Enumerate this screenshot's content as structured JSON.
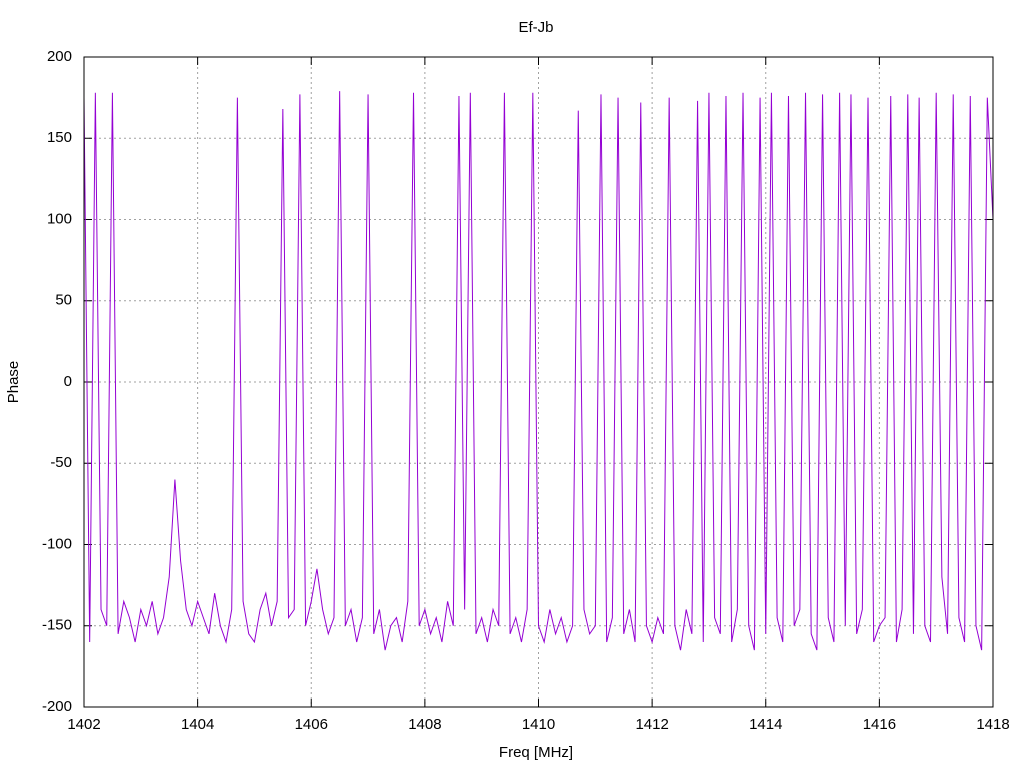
{
  "chart_data": {
    "type": "line",
    "title": "Ef-Jb",
    "x_label": "Freq [MHz]",
    "y_label": "Phase",
    "xlim": [
      1402,
      1418
    ],
    "xticks": [
      1402,
      1404,
      1406,
      1408,
      1410,
      1412,
      1414,
      1416,
      1418
    ],
    "ylim": [
      -200,
      200
    ],
    "yticks": [
      -200,
      -150,
      -100,
      -50,
      0,
      50,
      100,
      150,
      200
    ],
    "grid": true,
    "series": [
      {
        "color": "#9400d3",
        "x": [
          1402.0,
          1402.1,
          1402.2,
          1402.3,
          1402.4,
          1402.5,
          1402.6,
          1402.7,
          1402.8,
          1402.9,
          1403.0,
          1403.1,
          1403.2,
          1403.3,
          1403.4,
          1403.5,
          1403.6,
          1403.7,
          1403.8,
          1403.9,
          1404.0,
          1404.1,
          1404.2,
          1404.3,
          1404.4,
          1404.5,
          1404.6,
          1404.7,
          1404.8,
          1404.9,
          1405.0,
          1405.1,
          1405.2,
          1405.3,
          1405.4,
          1405.5,
          1405.6,
          1405.7,
          1405.8,
          1405.9,
          1406.0,
          1406.1,
          1406.2,
          1406.3,
          1406.4,
          1406.5,
          1406.6,
          1406.7,
          1406.8,
          1406.9,
          1407.0,
          1407.1,
          1407.2,
          1407.3,
          1407.4,
          1407.5,
          1407.6,
          1407.7,
          1407.8,
          1407.9,
          1408.0,
          1408.1,
          1408.2,
          1408.3,
          1408.4,
          1408.5,
          1408.6,
          1408.7,
          1408.8,
          1408.9,
          1409.0,
          1409.1,
          1409.2,
          1409.3,
          1409.4,
          1409.5,
          1409.6,
          1409.7,
          1409.8,
          1409.9,
          1410.0,
          1410.1,
          1410.2,
          1410.3,
          1410.4,
          1410.5,
          1410.6,
          1410.7,
          1410.8,
          1410.9,
          1411.0,
          1411.1,
          1411.2,
          1411.3,
          1411.4,
          1411.5,
          1411.6,
          1411.7,
          1411.8,
          1411.9,
          1412.0,
          1412.1,
          1412.2,
          1412.3,
          1412.4,
          1412.5,
          1412.6,
          1412.7,
          1412.8,
          1412.9,
          1413.0,
          1413.1,
          1413.2,
          1413.3,
          1413.4,
          1413.5,
          1413.6,
          1413.7,
          1413.8,
          1413.9,
          1414.0,
          1414.1,
          1414.2,
          1414.3,
          1414.4,
          1414.5,
          1414.6,
          1414.7,
          1414.8,
          1414.9,
          1415.0,
          1415.1,
          1415.2,
          1415.3,
          1415.4,
          1415.5,
          1415.6,
          1415.7,
          1415.8,
          1415.9,
          1416.0,
          1416.1,
          1416.2,
          1416.3,
          1416.4,
          1416.5,
          1416.6,
          1416.7,
          1416.8,
          1416.9,
          1417.0,
          1417.1,
          1417.2,
          1417.3,
          1417.4,
          1417.5,
          1417.6,
          1417.7,
          1417.8,
          1417.9,
          1418.0
        ],
        "values": [
          175,
          -160,
          178,
          -140,
          -150,
          178,
          -155,
          -135,
          -145,
          -160,
          -140,
          -150,
          -135,
          -155,
          -145,
          -120,
          -60,
          -110,
          -140,
          -150,
          -135,
          -145,
          -155,
          -130,
          -150,
          -160,
          -140,
          175,
          -135,
          -155,
          -160,
          -140,
          -130,
          -150,
          -135,
          168,
          -145,
          -140,
          177,
          -150,
          -135,
          -115,
          -140,
          -155,
          -145,
          179,
          -150,
          -140,
          -160,
          -145,
          177,
          -155,
          -140,
          -165,
          -150,
          -145,
          -160,
          -135,
          178,
          -150,
          -140,
          -155,
          -145,
          -160,
          -135,
          -150,
          176,
          -140,
          178,
          -155,
          -145,
          -160,
          -140,
          -150,
          178,
          -155,
          -145,
          -160,
          -140,
          178,
          -150,
          -160,
          -140,
          -155,
          -145,
          -160,
          -150,
          167,
          -140,
          -155,
          -150,
          177,
          -160,
          -145,
          175,
          -155,
          -140,
          -160,
          172,
          -150,
          -160,
          -145,
          -155,
          175,
          -150,
          -165,
          -140,
          -155,
          173,
          -160,
          178,
          -145,
          -155,
          176,
          -160,
          -140,
          178,
          -150,
          -165,
          175,
          -155,
          178,
          -145,
          -160,
          176,
          -150,
          -140,
          178,
          -155,
          -165,
          177,
          -145,
          -160,
          178,
          -150,
          177,
          -155,
          -140,
          175,
          -160,
          -150,
          -145,
          176,
          -160,
          -140,
          177,
          -155,
          175,
          -150,
          -160,
          178,
          -120,
          -155,
          177,
          -145,
          -160,
          176,
          -150,
          -165,
          175,
          100
        ]
      }
    ]
  }
}
